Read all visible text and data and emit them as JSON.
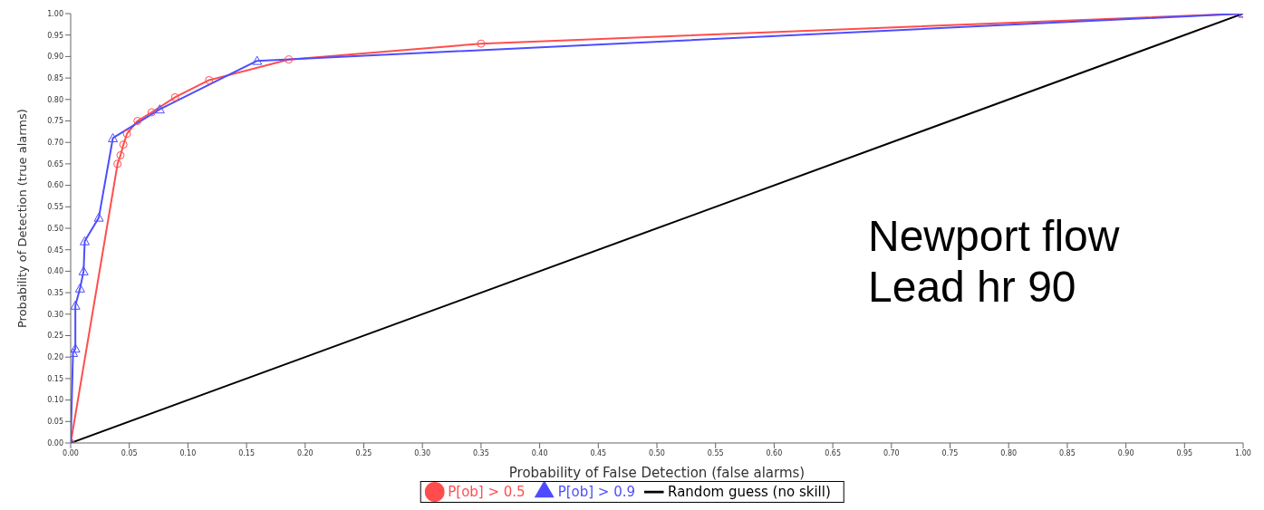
{
  "chart_data": {
    "type": "line",
    "xlabel": "Probability of False Detection (false alarms)",
    "ylabel": "Probability of Detection (true alarms)",
    "annotations": [
      "Newport flow",
      "Lead hr 90"
    ],
    "xlim": [
      0,
      1
    ],
    "ylim": [
      0,
      1
    ],
    "xticks": [
      {
        "value": 0,
        "label": "0.00"
      },
      {
        "value": 0.05,
        "label": "0.05"
      },
      {
        "value": 0.1,
        "label": "0.10"
      },
      {
        "value": 0.15,
        "label": "0.15"
      },
      {
        "value": 0.2,
        "label": "0.20"
      },
      {
        "value": 0.25,
        "label": "0.25"
      },
      {
        "value": 0.3,
        "label": "0.30"
      },
      {
        "value": 0.35,
        "label": "0.35"
      },
      {
        "value": 0.4,
        "label": "0.40"
      },
      {
        "value": 0.45,
        "label": "0.45"
      },
      {
        "value": 0.5,
        "label": "0.50"
      },
      {
        "value": 0.55,
        "label": "0.55"
      },
      {
        "value": 0.6,
        "label": "0.60"
      },
      {
        "value": 0.65,
        "label": "0.65"
      },
      {
        "value": 0.7,
        "label": "0.70"
      },
      {
        "value": 0.75,
        "label": "0.75"
      },
      {
        "value": 0.8,
        "label": "0.80"
      },
      {
        "value": 0.85,
        "label": "0.85"
      },
      {
        "value": 0.9,
        "label": "0.90"
      },
      {
        "value": 0.95,
        "label": "0.95"
      },
      {
        "value": 1,
        "label": "1.00"
      }
    ],
    "yticks": [
      {
        "value": 0,
        "label": "0.00"
      },
      {
        "value": 0.05,
        "label": "0.05"
      },
      {
        "value": 0.1,
        "label": "0.10"
      },
      {
        "value": 0.15,
        "label": "0.15"
      },
      {
        "value": 0.2,
        "label": "0.20"
      },
      {
        "value": 0.25,
        "label": "0.25"
      },
      {
        "value": 0.3,
        "label": "0.30"
      },
      {
        "value": 0.35,
        "label": "0.35"
      },
      {
        "value": 0.4,
        "label": "0.40"
      },
      {
        "value": 0.45,
        "label": "0.45"
      },
      {
        "value": 0.5,
        "label": "0.50"
      },
      {
        "value": 0.55,
        "label": "0.55"
      },
      {
        "value": 0.6,
        "label": "0.60"
      },
      {
        "value": 0.65,
        "label": "0.65"
      },
      {
        "value": 0.7,
        "label": "0.70"
      },
      {
        "value": 0.75,
        "label": "0.75"
      },
      {
        "value": 0.8,
        "label": "0.80"
      },
      {
        "value": 0.85,
        "label": "0.85"
      },
      {
        "value": 0.9,
        "label": "0.90"
      },
      {
        "value": 0.95,
        "label": "0.95"
      },
      {
        "value": 1,
        "label": "1.00"
      }
    ],
    "grid": false,
    "legend": "bottom",
    "series": [
      {
        "name": "Random guess (no skill)",
        "color": "#000000",
        "marker": "none",
        "x": [
          0,
          1
        ],
        "values": [
          0,
          1
        ]
      },
      {
        "name": "P[ob] > 0.5",
        "color": "#ff4d4d",
        "marker": "circle",
        "x": [
          0,
          0.04,
          0.0425,
          0.045,
          0.048,
          0.057,
          0.069,
          0.089,
          0.118,
          0.186,
          0.35,
          1
        ],
        "values": [
          0,
          0.65,
          0.67,
          0.695,
          0.72,
          0.75,
          0.77,
          0.805,
          0.845,
          0.893,
          0.93,
          1
        ]
      },
      {
        "name": "P[ob] > 0.9",
        "color": "#4d4dff",
        "marker": "triangle",
        "x": [
          0,
          0.002,
          0.004,
          0.004,
          0.008,
          0.011,
          0.012,
          0.024,
          0.036,
          0.076,
          0.159,
          1
        ],
        "values": [
          0,
          0.21,
          0.22,
          0.32,
          0.36,
          0.4,
          0.47,
          0.525,
          0.71,
          0.777,
          0.89,
          1
        ]
      }
    ]
  }
}
